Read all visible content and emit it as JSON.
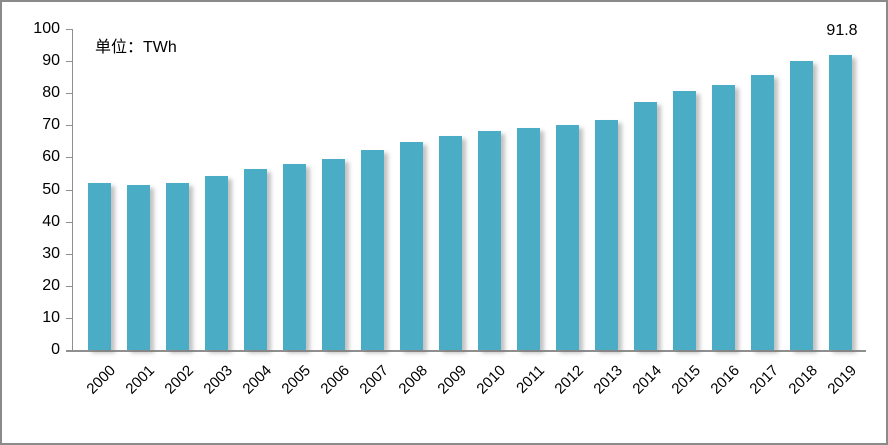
{
  "frame": {
    "border_color": "#8a8a8a",
    "background_color": "#ffffff"
  },
  "unit_label": "单位：TWh",
  "chart_data": {
    "type": "bar",
    "title": "",
    "xlabel": "",
    "ylabel": "",
    "unit": "TWh",
    "categories": [
      "2000",
      "2001",
      "2002",
      "2003",
      "2004",
      "2005",
      "2006",
      "2007",
      "2008",
      "2009",
      "2010",
      "2011",
      "2012",
      "2013",
      "2014",
      "2015",
      "2016",
      "2017",
      "2018",
      "2019"
    ],
    "values": [
      51.9,
      51.5,
      52.1,
      54.1,
      56.3,
      58.0,
      59.4,
      62.2,
      64.8,
      66.8,
      68.2,
      69.3,
      70.2,
      71.8,
      77.3,
      80.7,
      82.5,
      85.6,
      89.9,
      91.8
    ],
    "ylim": [
      0,
      100
    ],
    "ytick_step": 10,
    "y_tick_labels": [
      "0",
      "10",
      "20",
      "30",
      "40",
      "50",
      "60",
      "70",
      "80",
      "90",
      "100"
    ],
    "grid": false,
    "legend": "none",
    "bar_color": "#4BACC6",
    "axis_color": "#8f8f8f",
    "text_color": "#000000",
    "annotations": [
      {
        "category": "2019",
        "text": "91.8"
      }
    ]
  }
}
